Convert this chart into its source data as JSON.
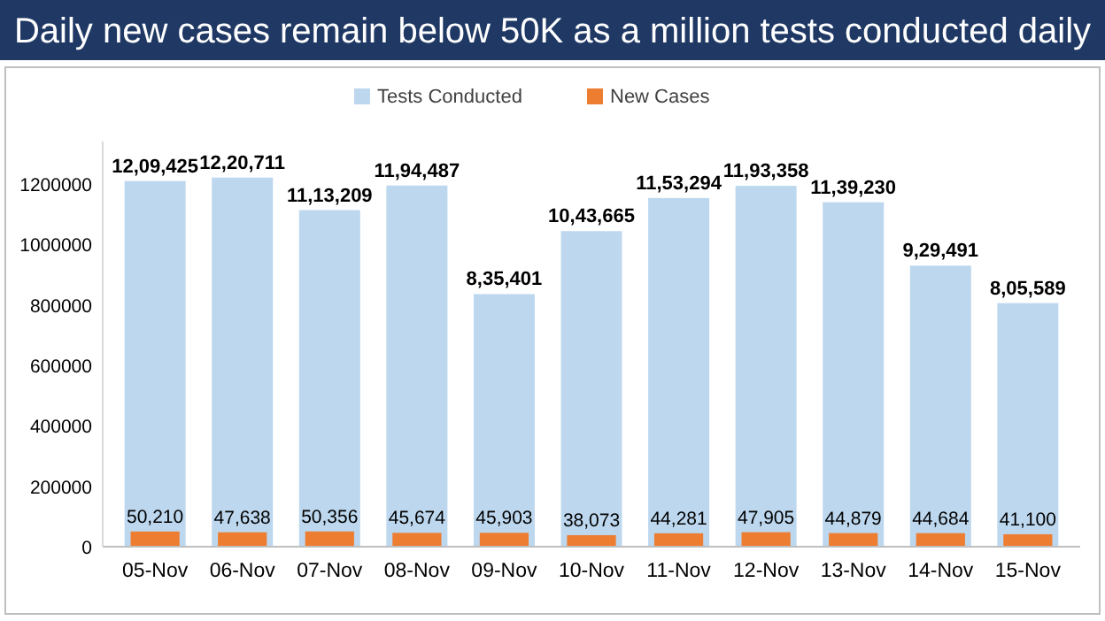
{
  "chart_data": {
    "type": "bar",
    "title": "Daily new cases remain below 50K as a million tests conducted daily",
    "categories": [
      "05-Nov",
      "06-Nov",
      "07-Nov",
      "08-Nov",
      "09-Nov",
      "10-Nov",
      "11-Nov",
      "12-Nov",
      "13-Nov",
      "14-Nov",
      "15-Nov"
    ],
    "series": [
      {
        "name": "Tests Conducted",
        "color": "#bdd7ee",
        "values": [
          1209425,
          1220711,
          1113209,
          1194487,
          835401,
          1043665,
          1153294,
          1193358,
          1139230,
          929491,
          805589
        ],
        "value_labels": [
          "12,09,425",
          "12,20,711",
          "11,13,209",
          "11,94,487",
          "8,35,401",
          "10,43,665",
          "11,53,294",
          "11,93,358",
          "11,39,230",
          "9,29,491",
          "8,05,589"
        ]
      },
      {
        "name": "New Cases",
        "color": "#ed7d31",
        "values": [
          50210,
          47638,
          50356,
          45674,
          45903,
          38073,
          44281,
          47905,
          44879,
          44684,
          41100
        ],
        "value_labels": [
          "50,210",
          "47,638",
          "50,356",
          "45,674",
          "45,903",
          "38,073",
          "44,281",
          "47,905",
          "44,879",
          "44,684",
          "41,100"
        ]
      }
    ],
    "ylim": [
      0,
      1340000
    ],
    "yticks": [
      0,
      200000,
      400000,
      600000,
      800000,
      1000000,
      1200000
    ],
    "legend": "top",
    "grid": false
  }
}
